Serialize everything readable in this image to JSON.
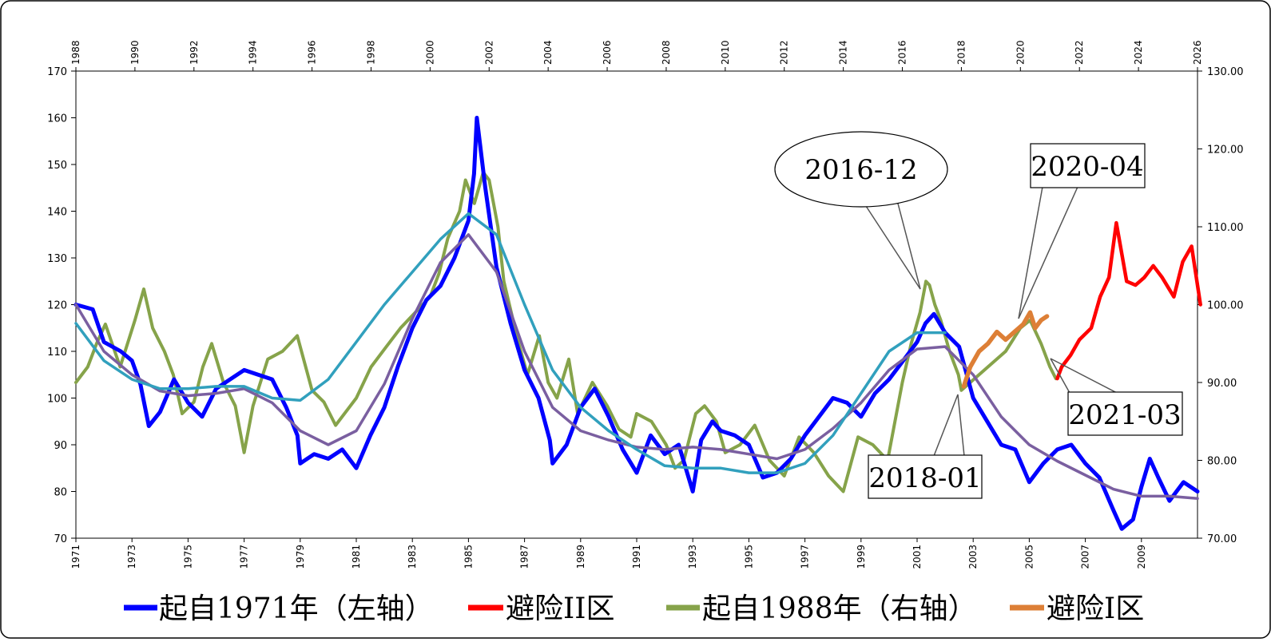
{
  "chart_data": {
    "type": "line",
    "axes": {
      "left": {
        "ylim": [
          70,
          170
        ],
        "ticks": [
          "70",
          "80",
          "90",
          "100",
          "110",
          "120",
          "130",
          "140",
          "150",
          "160",
          "170"
        ]
      },
      "right": {
        "ylim": [
          70,
          130
        ],
        "ticks": [
          "70.00",
          "80.00",
          "90.00",
          "100.00",
          "110.00",
          "120.00",
          "130.00"
        ]
      },
      "bottom": {
        "xlim": [
          1971,
          2011
        ],
        "ticks": [
          "1971",
          "1973",
          "1975",
          "1977",
          "1979",
          "1981",
          "1983",
          "1985",
          "1987",
          "1989",
          "1991",
          "1993",
          "1995",
          "1997",
          "1999",
          "2001",
          "2003",
          "2005",
          "2007",
          "2009"
        ]
      },
      "top": {
        "xlim": [
          1988,
          2026
        ],
        "ticks": [
          "1988",
          "1990",
          "1992",
          "1994",
          "1996",
          "1998",
          "2000",
          "2002",
          "2004",
          "2006",
          "2008",
          "2010",
          "2012",
          "2014",
          "2016",
          "2018",
          "2020",
          "2022",
          "2024",
          "2026"
        ]
      }
    },
    "grid": false,
    "legend_position": "bottom",
    "series": [
      {
        "name": "起自1971年（左轴）",
        "color": "#0000ff",
        "axis": "left-bottom",
        "points": [
          [
            1971,
            120
          ],
          [
            1971.6,
            119
          ],
          [
            1972,
            112
          ],
          [
            1972.6,
            110
          ],
          [
            1973,
            108
          ],
          [
            1973.3,
            103
          ],
          [
            1973.6,
            94
          ],
          [
            1974,
            97
          ],
          [
            1974.5,
            104
          ],
          [
            1975,
            99
          ],
          [
            1975.5,
            96
          ],
          [
            1976,
            102
          ],
          [
            1976.5,
            104
          ],
          [
            1977,
            106
          ],
          [
            1977.5,
            105
          ],
          [
            1978,
            104
          ],
          [
            1978.5,
            98
          ],
          [
            1978.9,
            92
          ],
          [
            1979,
            86
          ],
          [
            1979.5,
            88
          ],
          [
            1980,
            87
          ],
          [
            1980.5,
            89
          ],
          [
            1981,
            85
          ],
          [
            1981.5,
            92
          ],
          [
            1982,
            98
          ],
          [
            1982.5,
            107
          ],
          [
            1983,
            115
          ],
          [
            1983.5,
            121
          ],
          [
            1984,
            124
          ],
          [
            1984.5,
            130
          ],
          [
            1985,
            138
          ],
          [
            1985.2,
            148
          ],
          [
            1985.3,
            160
          ],
          [
            1985.6,
            145
          ],
          [
            1986,
            128
          ],
          [
            1986.5,
            116
          ],
          [
            1987,
            106
          ],
          [
            1987.5,
            100
          ],
          [
            1987.9,
            91
          ],
          [
            1988,
            86
          ],
          [
            1988.5,
            90
          ],
          [
            1989,
            98
          ],
          [
            1989.5,
            102
          ],
          [
            1990,
            96
          ],
          [
            1990.5,
            89
          ],
          [
            1991,
            84
          ],
          [
            1991.5,
            92
          ],
          [
            1992,
            88
          ],
          [
            1992.5,
            90
          ],
          [
            1993,
            80
          ],
          [
            1993.3,
            91
          ],
          [
            1993.7,
            95
          ],
          [
            1994,
            93
          ],
          [
            1994.5,
            92
          ],
          [
            1995,
            90
          ],
          [
            1995.5,
            83
          ],
          [
            1996,
            84
          ],
          [
            1996.5,
            87
          ],
          [
            1997,
            92
          ],
          [
            1997.5,
            96
          ],
          [
            1998,
            100
          ],
          [
            1998.5,
            99
          ],
          [
            1999,
            96
          ],
          [
            1999.5,
            101
          ],
          [
            2000,
            104
          ],
          [
            2000.5,
            108
          ],
          [
            2001,
            112
          ],
          [
            2001.3,
            116
          ],
          [
            2001.6,
            118
          ],
          [
            2002,
            114
          ],
          [
            2002.5,
            111
          ],
          [
            2003,
            100
          ],
          [
            2003.5,
            95
          ],
          [
            2004,
            90
          ],
          [
            2004.5,
            89
          ],
          [
            2005,
            82
          ],
          [
            2005.5,
            86
          ],
          [
            2006,
            89
          ],
          [
            2006.5,
            90
          ],
          [
            2007,
            86
          ],
          [
            2007.5,
            83
          ],
          [
            2008,
            76
          ],
          [
            2008.3,
            72
          ],
          [
            2008.7,
            74
          ],
          [
            2009,
            81
          ],
          [
            2009.3,
            87
          ],
          [
            2009.6,
            83
          ],
          [
            2010,
            78
          ],
          [
            2010.5,
            82
          ],
          [
            2011,
            80
          ]
        ]
      },
      {
        "name": "避险II区",
        "color": "#ff0000",
        "axis": "right-top",
        "points": [
          [
            2021.25,
            90.5
          ],
          [
            2021.4,
            92
          ],
          [
            2021.7,
            93.5
          ],
          [
            2022,
            95.5
          ],
          [
            2022.4,
            97
          ],
          [
            2022.7,
            101
          ],
          [
            2023,
            103.5
          ],
          [
            2023.25,
            110.5
          ],
          [
            2023.6,
            103
          ],
          [
            2023.9,
            102.5
          ],
          [
            2024.2,
            103.5
          ],
          [
            2024.5,
            105
          ],
          [
            2024.8,
            103.5
          ],
          [
            2025.2,
            101
          ],
          [
            2025.5,
            105.5
          ],
          [
            2025.8,
            107.5
          ],
          [
            2026.1,
            100
          ]
        ]
      },
      {
        "name": "起自1988年（右轴）",
        "color": "#86a34a",
        "axis": "right-top",
        "points": [
          [
            1988,
            90
          ],
          [
            1988.4,
            92
          ],
          [
            1988.7,
            95
          ],
          [
            1989,
            97.5
          ],
          [
            1989.5,
            92
          ],
          [
            1990,
            98
          ],
          [
            1990.3,
            102
          ],
          [
            1990.6,
            97
          ],
          [
            1991,
            94
          ],
          [
            1991.3,
            91
          ],
          [
            1991.6,
            86
          ],
          [
            1992,
            87.5
          ],
          [
            1992.3,
            92
          ],
          [
            1992.6,
            95
          ],
          [
            1993,
            90
          ],
          [
            1993.4,
            87
          ],
          [
            1993.7,
            81
          ],
          [
            1994,
            87
          ],
          [
            1994.5,
            93
          ],
          [
            1995,
            94
          ],
          [
            1995.5,
            96
          ],
          [
            1996,
            89
          ],
          [
            1996.4,
            87.5
          ],
          [
            1996.8,
            84.5
          ],
          [
            1997,
            85.5
          ],
          [
            1997.5,
            88
          ],
          [
            1998,
            92
          ],
          [
            1998.5,
            94.5
          ],
          [
            1999,
            97
          ],
          [
            1999.5,
            99
          ],
          [
            2000,
            101
          ],
          [
            2000.3,
            104
          ],
          [
            2000.6,
            108.5
          ],
          [
            2001,
            112
          ],
          [
            2001.2,
            116
          ],
          [
            2001.5,
            113
          ],
          [
            2001.8,
            117
          ],
          [
            2002,
            116
          ],
          [
            2002.3,
            110
          ],
          [
            2002.5,
            103
          ],
          [
            2003,
            95
          ],
          [
            2003.3,
            91
          ],
          [
            2003.7,
            96
          ],
          [
            2004,
            90
          ],
          [
            2004.3,
            88
          ],
          [
            2004.7,
            93
          ],
          [
            2005,
            86
          ],
          [
            2005.5,
            90
          ],
          [
            2006,
            87
          ],
          [
            2006.4,
            84
          ],
          [
            2006.8,
            83
          ],
          [
            2007,
            86
          ],
          [
            2007.5,
            85
          ],
          [
            2008,
            82
          ],
          [
            2008.3,
            79
          ],
          [
            2008.6,
            80
          ],
          [
            2009,
            86
          ],
          [
            2009.3,
            87
          ],
          [
            2009.7,
            85
          ],
          [
            2010,
            81
          ],
          [
            2010.5,
            82
          ],
          [
            2011,
            84.5
          ],
          [
            2011.5,
            80
          ],
          [
            2012,
            78
          ],
          [
            2012.5,
            83
          ],
          [
            2013,
            81
          ],
          [
            2013.5,
            78
          ],
          [
            2014,
            76
          ],
          [
            2014.5,
            83
          ],
          [
            2015,
            82
          ],
          [
            2015.5,
            80
          ],
          [
            2016,
            90
          ],
          [
            2016.3,
            95
          ],
          [
            2016.6,
            99
          ],
          [
            2016.8,
            103
          ],
          [
            2016.92,
            102.5
          ],
          [
            2017.1,
            100
          ],
          [
            2017.3,
            98
          ],
          [
            2017.6,
            94
          ],
          [
            2017.9,
            91
          ],
          [
            2018,
            89
          ],
          [
            2019.5,
            94
          ],
          [
            2020,
            97
          ],
          [
            2020.33,
            98
          ],
          [
            2020.7,
            95
          ],
          [
            2020.9,
            93
          ],
          [
            2021,
            92
          ],
          [
            2021.2,
            90.5
          ]
        ]
      },
      {
        "name": "避险I区",
        "color": "#dd7f36",
        "axis": "right-top",
        "points": [
          [
            2018.08,
            89.5
          ],
          [
            2018.3,
            92
          ],
          [
            2018.6,
            94
          ],
          [
            2018.9,
            95
          ],
          [
            2019.2,
            96.5
          ],
          [
            2019.5,
            95.5
          ],
          [
            2019.8,
            96.5
          ],
          [
            2020.1,
            97.5
          ],
          [
            2020.33,
            99
          ],
          [
            2020.5,
            97
          ],
          [
            2020.7,
            98
          ],
          [
            2020.9,
            98.5
          ]
        ]
      },
      {
        "name": "",
        "color": "#7a5fa0",
        "axis": "left-bottom",
        "points": [
          [
            1971,
            120
          ],
          [
            1972,
            110
          ],
          [
            1973,
            105
          ],
          [
            1974,
            101.5
          ],
          [
            1975,
            100.5
          ],
          [
            1976,
            101
          ],
          [
            1977,
            102
          ],
          [
            1978,
            99
          ],
          [
            1979,
            93
          ],
          [
            1980,
            90
          ],
          [
            1981,
            93
          ],
          [
            1982,
            103
          ],
          [
            1983,
            117
          ],
          [
            1984,
            129
          ],
          [
            1985,
            135
          ],
          [
            1986,
            127
          ],
          [
            1987,
            110
          ],
          [
            1988,
            98
          ],
          [
            1989,
            93
          ],
          [
            1990,
            91
          ],
          [
            1991,
            89.5
          ],
          [
            1992,
            89
          ],
          [
            1993,
            89.5
          ],
          [
            1994,
            89
          ],
          [
            1995,
            88
          ],
          [
            1996,
            87
          ],
          [
            1997,
            89
          ],
          [
            1998,
            93.5
          ],
          [
            1999,
            99
          ],
          [
            2000,
            106
          ],
          [
            2001,
            110.5
          ],
          [
            2002,
            111
          ],
          [
            2003,
            105
          ],
          [
            2004,
            96
          ],
          [
            2005,
            90
          ],
          [
            2006,
            86.5
          ],
          [
            2007,
            83.5
          ],
          [
            2008,
            80.5
          ],
          [
            2009,
            79
          ],
          [
            2010,
            79
          ],
          [
            2011,
            78.5
          ]
        ]
      },
      {
        "name": "",
        "color": "#31a0bd",
        "axis": "left-bottom",
        "points": [
          [
            1971,
            116
          ],
          [
            1972,
            108
          ],
          [
            1973,
            104
          ],
          [
            1974,
            102
          ],
          [
            1975,
            102
          ],
          [
            1976,
            102.5
          ],
          [
            1977,
            102.5
          ],
          [
            1978,
            100
          ],
          [
            1979,
            99.5
          ],
          [
            1980,
            104
          ],
          [
            1981,
            112
          ],
          [
            1982,
            120
          ],
          [
            1983,
            127
          ],
          [
            1984,
            134
          ],
          [
            1985,
            139.5
          ],
          [
            1986,
            135
          ],
          [
            1987,
            120
          ],
          [
            1988,
            106
          ],
          [
            1989,
            98
          ],
          [
            1990,
            93
          ],
          [
            1991,
            89
          ],
          [
            1992,
            85.5
          ],
          [
            1993,
            85
          ],
          [
            1994,
            85
          ],
          [
            1995,
            84
          ],
          [
            1996,
            84
          ],
          [
            1997,
            86
          ],
          [
            1998,
            92
          ],
          [
            1999,
            101
          ],
          [
            2000,
            110
          ],
          [
            2001,
            114
          ],
          [
            2002,
            114
          ]
        ]
      }
    ],
    "annotations": [
      {
        "text": "2016-12"
      },
      {
        "text": "2020-04"
      },
      {
        "text": "2021-03"
      },
      {
        "text": "2018-01"
      }
    ]
  }
}
